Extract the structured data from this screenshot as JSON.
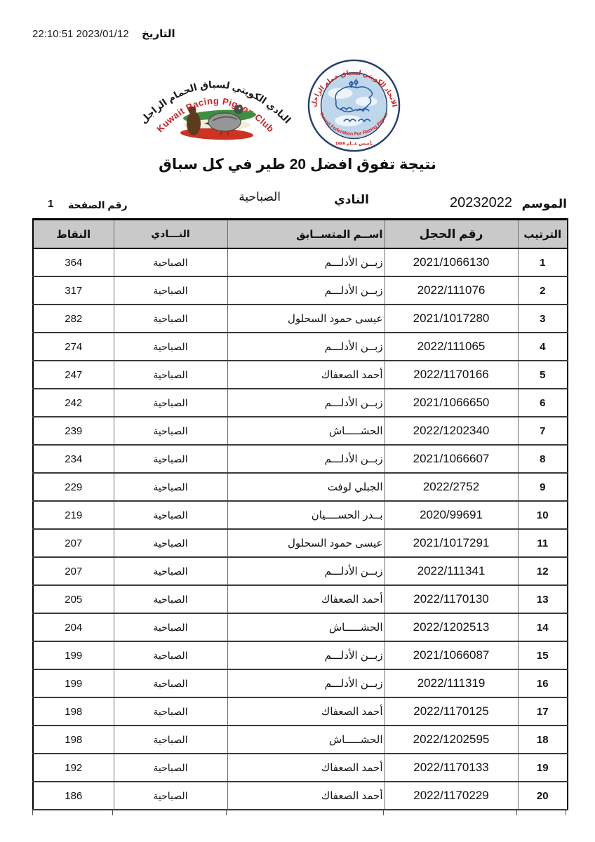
{
  "header": {
    "date_label": "التاريخ",
    "date_value": "22:10:51 2023/01/12",
    "title": "نتيجة تفوق افضل 20 طير في كل سباق"
  },
  "logos": {
    "club": {
      "arabic_arc": "النادي الكويتي لسباق الحمام الزاجل",
      "english_arc": "Kuwait Racing Pigeon Club"
    },
    "federation": {
      "arabic_arc": "الاتحاد الكويتي لسباق حمام الزاجل",
      "english_arc": "Kuwait Federation For Racing Pigeon",
      "founded": "تأسس عــام 1989"
    }
  },
  "meta": {
    "season_label": "الموسم",
    "season_value": "20232022",
    "club_label": "النادي",
    "club_value": "الصباحية",
    "page_label": "رقم الصفحة",
    "page_value": "1"
  },
  "table": {
    "columns": [
      {
        "key": "rank",
        "label": "الترتيب"
      },
      {
        "key": "ring",
        "label": "رقم الحجل"
      },
      {
        "key": "name",
        "label": "اســم المتســابق"
      },
      {
        "key": "club",
        "label": "النـــادي"
      },
      {
        "key": "points",
        "label": "النقاط"
      }
    ],
    "rows": [
      {
        "rank": "1",
        "ring": "2021/1066130",
        "name": "زبــن الأدلـــم",
        "club": "الصباحية",
        "points": "364"
      },
      {
        "rank": "2",
        "ring": "2022/111076",
        "name": "زبــن الأدلـــم",
        "club": "الصباحية",
        "points": "317"
      },
      {
        "rank": "3",
        "ring": "2021/1017280",
        "name": "عيسى حمود السحلول",
        "club": "الصباحية",
        "points": "282"
      },
      {
        "rank": "4",
        "ring": "2022/111065",
        "name": "زبــن الأدلـــم",
        "club": "الصباحية",
        "points": "274"
      },
      {
        "rank": "5",
        "ring": "2022/1170166",
        "name": "أحمد الصعفاك",
        "club": "الصباحية",
        "points": "247"
      },
      {
        "rank": "6",
        "ring": "2021/1066650",
        "name": "زبــن الأدلـــم",
        "club": "الصباحية",
        "points": "242"
      },
      {
        "rank": "7",
        "ring": "2022/1202340",
        "name": "الحشـــــاش",
        "club": "الصباحية",
        "points": "239"
      },
      {
        "rank": "8",
        "ring": "2021/1066607",
        "name": "زبــن الأدلـــم",
        "club": "الصباحية",
        "points": "234"
      },
      {
        "rank": "9",
        "ring": "2022/2752",
        "name": "الجبلي لوفت",
        "club": "الصباحية",
        "points": "229"
      },
      {
        "rank": "10",
        "ring": "2020/99691",
        "name": "بــدر الحســــيان",
        "club": "الصباحية",
        "points": "219"
      },
      {
        "rank": "11",
        "ring": "2021/1017291",
        "name": "عيسى حمود السحلول",
        "club": "الصباحية",
        "points": "207"
      },
      {
        "rank": "12",
        "ring": "2022/111341",
        "name": "زبــن الأدلـــم",
        "club": "الصباحية",
        "points": "207"
      },
      {
        "rank": "13",
        "ring": "2022/1170130",
        "name": "أحمد الصعفاك",
        "club": "الصباحية",
        "points": "205"
      },
      {
        "rank": "14",
        "ring": "2022/1202513",
        "name": "الحشـــــاش",
        "club": "الصباحية",
        "points": "204"
      },
      {
        "rank": "15",
        "ring": "2021/1066087",
        "name": "زبــن الأدلـــم",
        "club": "الصباحية",
        "points": "199"
      },
      {
        "rank": "16",
        "ring": "2022/111319",
        "name": "زبــن الأدلـــم",
        "club": "الصباحية",
        "points": "199"
      },
      {
        "rank": "17",
        "ring": "2022/1170125",
        "name": "أحمد الصعفاك",
        "club": "الصباحية",
        "points": "198"
      },
      {
        "rank": "18",
        "ring": "2022/1202595",
        "name": "الحشـــــاش",
        "club": "الصباحية",
        "points": "198"
      },
      {
        "rank": "19",
        "ring": "2022/1170133",
        "name": "أحمد الصعفاك",
        "club": "الصباحية",
        "points": "192"
      },
      {
        "rank": "20",
        "ring": "2022/1170229",
        "name": "أحمد الصعفاك",
        "club": "الصباحية",
        "points": "186"
      }
    ]
  },
  "colors": {
    "header_bg": "#c9c9c9",
    "logo_red": "#cc2222",
    "logo_navy": "#25406e",
    "logo_sky": "#bed7eb",
    "logo_green": "#3f8f3f"
  }
}
